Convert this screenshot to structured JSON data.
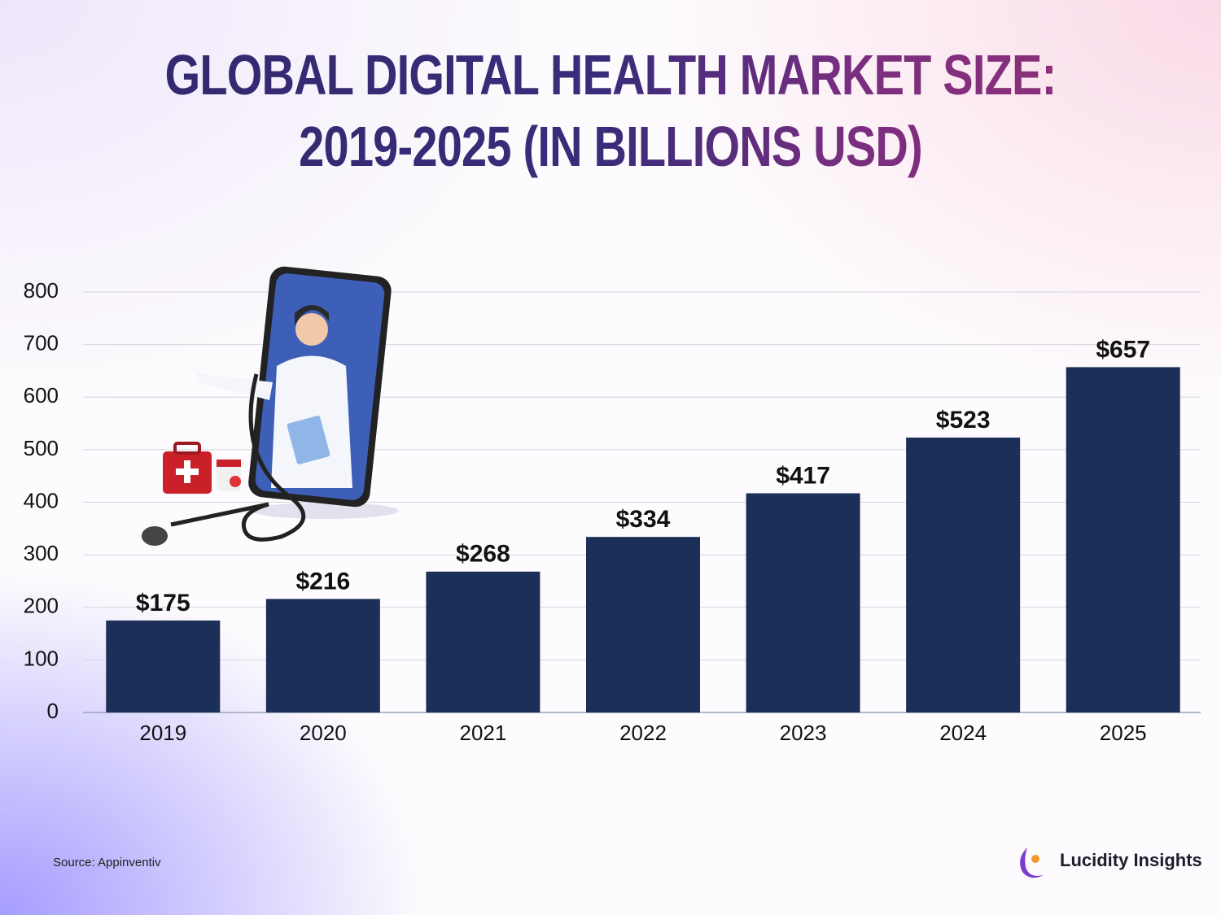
{
  "chart_data": {
    "type": "bar",
    "title": "GLOBAL DIGITAL HEALTH MARKET SIZE:\n2019-2025 (IN BILLIONS USD)",
    "categories": [
      "2019",
      "2020",
      "2021",
      "2022",
      "2023",
      "2024",
      "2025"
    ],
    "values": [
      175,
      216,
      268,
      334,
      417,
      523,
      657
    ],
    "value_labels": [
      "$175",
      "$216",
      "$268",
      "$334",
      "$417",
      "$523",
      "$657"
    ],
    "color": "#1b2f58",
    "ylim": [
      0,
      800
    ],
    "yticks": [
      0,
      100,
      200,
      300,
      400,
      500,
      600,
      700,
      800
    ],
    "grid": true,
    "source": "Source: Appinventiv",
    "brand": "Lucidity Insights"
  }
}
